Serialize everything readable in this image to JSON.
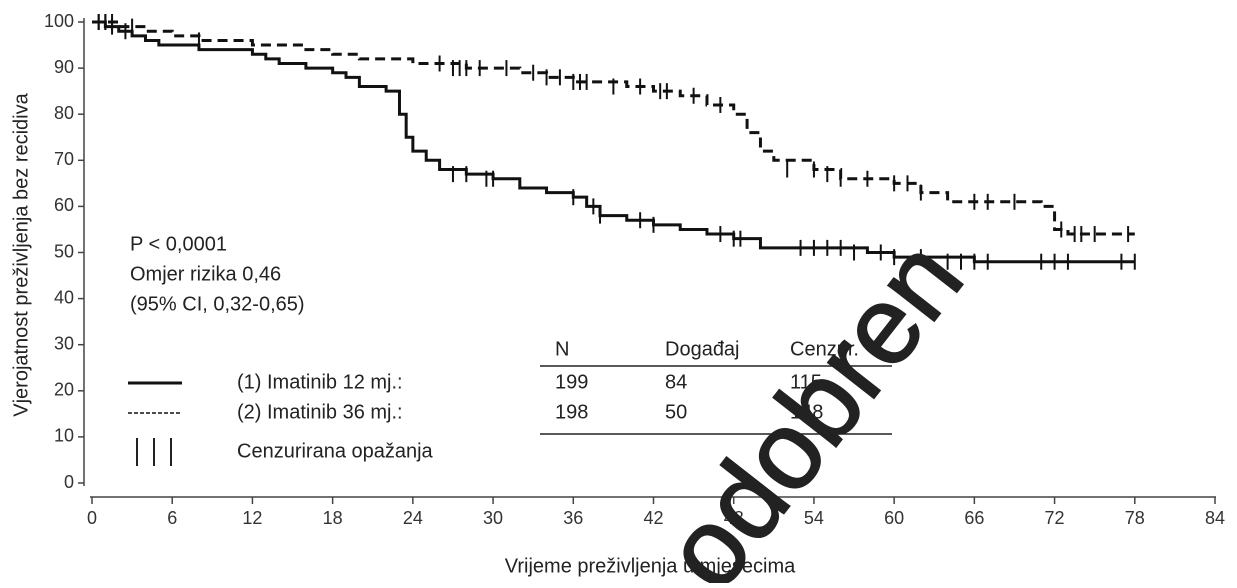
{
  "chart_data": {
    "type": "kaplan-meier",
    "y_label": "Vjerojatnost preživljenja bez recidiva",
    "x_label": "Vrijeme preživljenja u mjesecima",
    "xlim": [
      0,
      84
    ],
    "xticks": [
      0,
      6,
      12,
      18,
      24,
      30,
      36,
      42,
      48,
      54,
      60,
      66,
      72,
      78,
      84
    ],
    "ylim": [
      0,
      100
    ],
    "yticks": [
      0,
      10,
      20,
      30,
      40,
      50,
      60,
      70,
      80,
      90,
      100
    ],
    "annotations": [
      "P < 0,0001",
      "Omjer rizika 0,46",
      "(95% CI, 0,32-0,65)"
    ],
    "table_header": [
      "N",
      "Događaj",
      "Cenzur."
    ],
    "censor_label": "Cenzurirana opažanja",
    "watermark": "odobren",
    "series": [
      {
        "name": "(1) Imatinib 12 mj.:",
        "color": "#111111",
        "dashed": false,
        "n": 199,
        "events": 84,
        "censored": 115,
        "x": [
          0,
          1,
          2,
          3,
          4,
          5,
          6,
          8,
          10,
          12,
          13,
          14,
          16,
          18,
          19,
          20,
          22,
          23,
          23.5,
          24,
          25,
          26,
          28,
          30,
          32,
          34,
          36,
          37,
          38,
          40,
          42,
          44,
          46,
          48,
          50,
          54,
          58,
          60,
          66,
          72,
          78
        ],
        "values": [
          100,
          99,
          98,
          97,
          96,
          95,
          95,
          94,
          94,
          93,
          92,
          91,
          90,
          89,
          88,
          86,
          85,
          80,
          75,
          72,
          70,
          68,
          67,
          66,
          64,
          63,
          62,
          60,
          58,
          57,
          56,
          55,
          54,
          53,
          51,
          51,
          50,
          49,
          48,
          48,
          48
        ],
        "censor_x": [
          0.5,
          1,
          1.5,
          2.5,
          27,
          28,
          29.5,
          30,
          36,
          37.5,
          38,
          41,
          42,
          47,
          48,
          48.5,
          53,
          54,
          55,
          56,
          57,
          59,
          60,
          62,
          64,
          65,
          66,
          67,
          71,
          72,
          73,
          77,
          78
        ],
        "censor_values": [
          100,
          100,
          99,
          98,
          67,
          67,
          66,
          66,
          62,
          60,
          58,
          57,
          56,
          54,
          53,
          53,
          51,
          51,
          51,
          51,
          50,
          50,
          49,
          49,
          48,
          48,
          48,
          48,
          48,
          48,
          48,
          48,
          48
        ]
      },
      {
        "name": "(2) Imatinib 36 mj.:",
        "color": "#111111",
        "dashed": true,
        "n": 198,
        "events": 50,
        "censored": 148,
        "x": [
          0,
          2,
          4,
          6,
          8,
          12,
          16,
          18,
          20,
          24,
          28,
          32,
          34,
          36,
          40,
          42,
          44,
          46,
          48,
          49,
          50,
          51,
          54,
          56,
          60,
          62,
          64,
          70,
          71,
          72,
          73,
          78
        ],
        "values": [
          100,
          99,
          98,
          97,
          96,
          95,
          94,
          93,
          92,
          91,
          90,
          89,
          88,
          87,
          86,
          85,
          84,
          82,
          80,
          76,
          72,
          70,
          68,
          66,
          65,
          63,
          61,
          61,
          60,
          55,
          54,
          54
        ],
        "censor_x": [
          0.5,
          1,
          1.5,
          3,
          8,
          26,
          27,
          27.5,
          28,
          29,
          31,
          33,
          34,
          35,
          36,
          36.5,
          37,
          39,
          41,
          42.5,
          43,
          45,
          47,
          52,
          54,
          55,
          56,
          58,
          60,
          61,
          62,
          66,
          67,
          69,
          72.5,
          73.5,
          74,
          75,
          77.5
        ],
        "censor_values": [
          100,
          100,
          100,
          99,
          96,
          91,
          90,
          90,
          90,
          90,
          90,
          89,
          88,
          88,
          87,
          87,
          87,
          86,
          86,
          85,
          85,
          84,
          82,
          68,
          68,
          67,
          66,
          66,
          65,
          65,
          63,
          61,
          61,
          61,
          55,
          54,
          54,
          54,
          54
        ]
      }
    ]
  }
}
